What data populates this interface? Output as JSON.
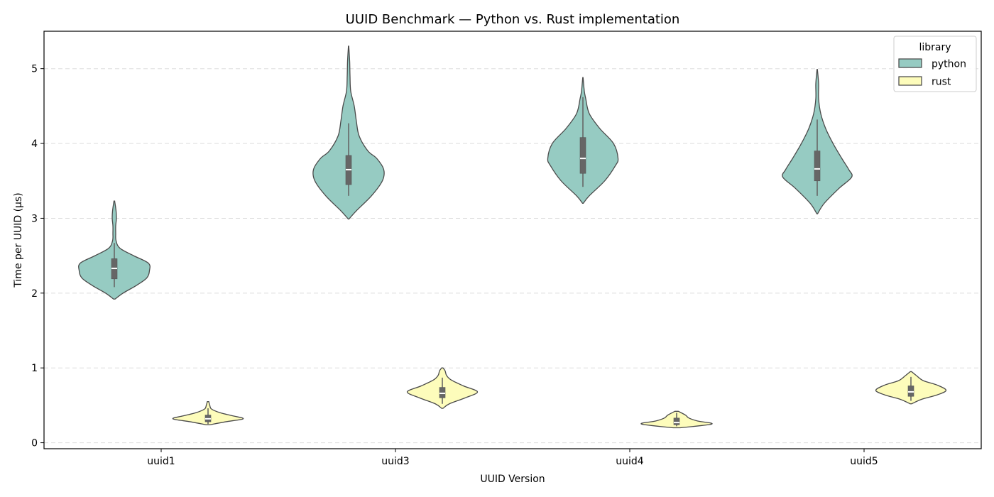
{
  "chart_data": {
    "type": "violin",
    "title": "UUID Benchmark — Python vs. Rust implementation",
    "xlabel": "UUID Version",
    "ylabel": "Time per UUID (µs)",
    "categories": [
      "uuid1",
      "uuid3",
      "uuid4",
      "uuid5"
    ],
    "ylim": [
      -0.08,
      5.5
    ],
    "yticks": [
      "0",
      "1",
      "2",
      "3",
      "4",
      "5"
    ],
    "grid": "horizontal dashed",
    "legend": {
      "title": "library",
      "placement": "top-right"
    },
    "series": [
      {
        "name": "python",
        "color": "#96cbc2",
        "violins": [
          {
            "category": "uuid1",
            "min": 1.92,
            "max": 3.23,
            "q1": 2.19,
            "median": 2.33,
            "q3": 2.46,
            "whisker_low": 2.08,
            "whisker_high": 2.67,
            "density": [
              [
                1.92,
                0.02
              ],
              [
                2.0,
                0.25
              ],
              [
                2.1,
                0.62
              ],
              [
                2.2,
                0.92
              ],
              [
                2.3,
                1.0
              ],
              [
                2.4,
                0.97
              ],
              [
                2.5,
                0.55
              ],
              [
                2.6,
                0.16
              ],
              [
                2.7,
                0.05
              ],
              [
                2.8,
                0.04
              ],
              [
                2.9,
                0.04
              ],
              [
                3.0,
                0.06
              ],
              [
                3.1,
                0.05
              ],
              [
                3.23,
                0.01
              ]
            ]
          },
          {
            "category": "uuid3",
            "min": 2.99,
            "max": 5.3,
            "q1": 3.45,
            "median": 3.65,
            "q3": 3.84,
            "whisker_low": 3.3,
            "whisker_high": 4.27,
            "density": [
              [
                2.99,
                0.01
              ],
              [
                3.1,
                0.22
              ],
              [
                3.3,
                0.65
              ],
              [
                3.5,
                0.96
              ],
              [
                3.65,
                1.0
              ],
              [
                3.8,
                0.8
              ],
              [
                3.9,
                0.55
              ],
              [
                4.1,
                0.3
              ],
              [
                4.3,
                0.22
              ],
              [
                4.5,
                0.16
              ],
              [
                4.7,
                0.06
              ],
              [
                4.9,
                0.04
              ],
              [
                5.1,
                0.03
              ],
              [
                5.3,
                0.005
              ]
            ]
          },
          {
            "category": "uuid4",
            "min": 3.2,
            "max": 4.88,
            "q1": 3.6,
            "median": 3.8,
            "q3": 4.08,
            "whisker_low": 3.42,
            "whisker_high": 4.62,
            "density": [
              [
                3.2,
                0.01
              ],
              [
                3.3,
                0.18
              ],
              [
                3.5,
                0.62
              ],
              [
                3.7,
                0.92
              ],
              [
                3.8,
                1.0
              ],
              [
                4.0,
                0.87
              ],
              [
                4.2,
                0.48
              ],
              [
                4.4,
                0.18
              ],
              [
                4.6,
                0.08
              ],
              [
                4.7,
                0.04
              ],
              [
                4.88,
                0.005
              ]
            ]
          },
          {
            "category": "uuid5",
            "min": 3.06,
            "max": 4.99,
            "q1": 3.5,
            "median": 3.66,
            "q3": 3.9,
            "whisker_low": 3.3,
            "whisker_high": 4.32,
            "density": [
              [
                3.06,
                0.01
              ],
              [
                3.2,
                0.2
              ],
              [
                3.4,
                0.62
              ],
              [
                3.55,
                0.98
              ],
              [
                3.65,
                0.9
              ],
              [
                3.8,
                0.7
              ],
              [
                4.0,
                0.45
              ],
              [
                4.2,
                0.24
              ],
              [
                4.4,
                0.1
              ],
              [
                4.6,
                0.04
              ],
              [
                4.8,
                0.04
              ],
              [
                4.99,
                0.005
              ]
            ]
          }
        ]
      },
      {
        "name": "rust",
        "color": "#fdfcbb",
        "violins": [
          {
            "category": "uuid1",
            "min": 0.24,
            "max": 0.55,
            "q1": 0.28,
            "median": 0.32,
            "q3": 0.37,
            "whisker_low": 0.25,
            "whisker_high": 0.46,
            "density": [
              [
                0.24,
                0.05
              ],
              [
                0.28,
                0.5
              ],
              [
                0.32,
                1.0
              ],
              [
                0.36,
                0.7
              ],
              [
                0.4,
                0.35
              ],
              [
                0.45,
                0.1
              ],
              [
                0.5,
                0.05
              ],
              [
                0.55,
                0.02
              ]
            ]
          },
          {
            "category": "uuid3",
            "min": 0.46,
            "max": 1.0,
            "q1": 0.6,
            "median": 0.66,
            "q3": 0.74,
            "whisker_low": 0.52,
            "whisker_high": 0.87,
            "density": [
              [
                0.46,
                0.02
              ],
              [
                0.52,
                0.2
              ],
              [
                0.6,
                0.65
              ],
              [
                0.68,
                1.0
              ],
              [
                0.76,
                0.6
              ],
              [
                0.84,
                0.25
              ],
              [
                0.9,
                0.12
              ],
              [
                0.96,
                0.08
              ],
              [
                1.0,
                0.02
              ]
            ]
          },
          {
            "category": "uuid4",
            "min": 0.2,
            "max": 0.42,
            "q1": 0.24,
            "median": 0.27,
            "q3": 0.33,
            "whisker_low": 0.22,
            "whisker_high": 0.4,
            "density": [
              [
                0.2,
                0.1
              ],
              [
                0.25,
                1.0
              ],
              [
                0.29,
                0.6
              ],
              [
                0.33,
                0.35
              ],
              [
                0.37,
                0.25
              ],
              [
                0.42,
                0.05
              ]
            ]
          },
          {
            "category": "uuid5",
            "min": 0.52,
            "max": 0.95,
            "q1": 0.62,
            "median": 0.68,
            "q3": 0.76,
            "whisker_low": 0.56,
            "whisker_high": 0.88,
            "density": [
              [
                0.52,
                0.02
              ],
              [
                0.58,
                0.3
              ],
              [
                0.64,
                0.75
              ],
              [
                0.7,
                1.0
              ],
              [
                0.77,
                0.75
              ],
              [
                0.83,
                0.35
              ],
              [
                0.9,
                0.15
              ],
              [
                0.95,
                0.02
              ]
            ]
          }
        ]
      }
    ]
  }
}
